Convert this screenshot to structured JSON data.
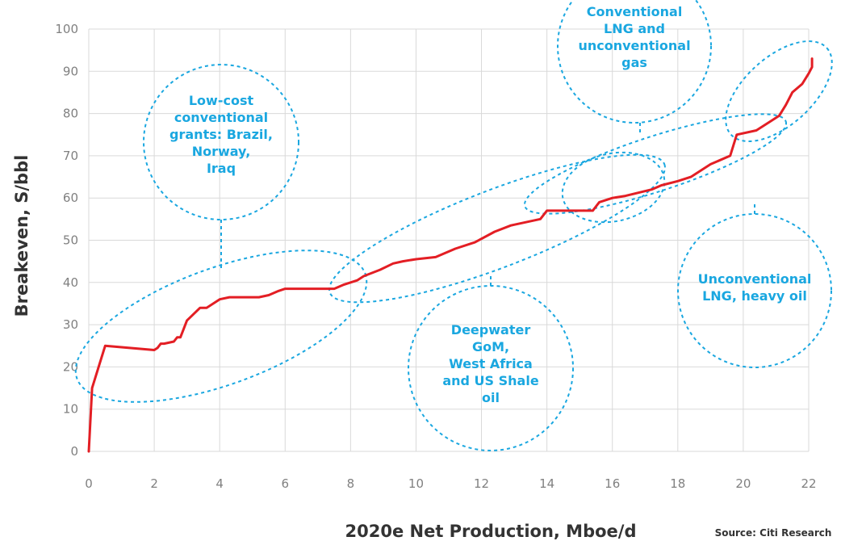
{
  "chart_data": {
    "type": "line",
    "title": "",
    "xlabel": "2020e Net Production, Mboe/d",
    "ylabel": "Breakeven, S/bbl",
    "source": "Source: Citi Research",
    "xlim": [
      0,
      22
    ],
    "ylim": [
      0,
      100
    ],
    "x_ticks": [
      "0",
      "2",
      "4",
      "6",
      "8",
      "10",
      "12",
      "14",
      "16",
      "18",
      "20",
      "22"
    ],
    "y_ticks": [
      "0",
      "10",
      "20",
      "30",
      "40",
      "50",
      "60",
      "70",
      "80",
      "90",
      "100"
    ],
    "grid": true,
    "line_color": "#e31e24",
    "annotation_color": "#1aa7e0",
    "series": [
      {
        "x": [
          0,
          0.1,
          0.5,
          2.0,
          2.1,
          2.2,
          2.3,
          2.6,
          2.7,
          2.8,
          2.9,
          3.0,
          3.4,
          3.6,
          3.8,
          4.0,
          4.3,
          5.2,
          5.5,
          5.8,
          6.0,
          7.5,
          7.8,
          8.0,
          8.2,
          8.4,
          8.9,
          9.3,
          9.6,
          10.0,
          10.6,
          11.2,
          11.8,
          12.4,
          12.9,
          13.8,
          14.0,
          14.6,
          15.4,
          15.6,
          16.0,
          16.4,
          17.2,
          17.5,
          18.0,
          18.4,
          19.0,
          19.6,
          19.8,
          20.4,
          20.8,
          21.1,
          21.3,
          21.5,
          21.8,
          22.0,
          22.1,
          22.1
        ],
        "y": [
          0,
          15,
          25,
          24,
          24.5,
          25.5,
          25.5,
          26,
          27,
          27,
          29,
          31,
          34,
          34,
          35,
          36,
          36.5,
          36.5,
          37,
          38,
          38.5,
          38.5,
          39.5,
          40,
          40.5,
          41.5,
          43,
          44.5,
          45,
          45.5,
          46,
          48,
          49.5,
          52,
          53.5,
          55,
          57,
          57,
          57,
          59,
          60,
          60.5,
          62,
          63,
          64,
          65,
          68,
          70,
          75,
          76,
          78,
          79.5,
          82,
          85,
          87,
          89.5,
          91,
          93
        ]
      }
    ],
    "annotations": [
      {
        "lines": [
          "Low-cost",
          "conventional",
          "grants: Brazil,",
          "Norway,",
          "Iraq"
        ]
      },
      {
        "lines": [
          "Deepwater",
          "GoM,",
          "West Africa",
          "and US Shale",
          "oil"
        ]
      },
      {
        "lines": [
          "Conventional",
          "LNG and",
          "unconventional",
          "gas"
        ]
      },
      {
        "lines": [
          "Unconventional",
          "LNG, heavy oil"
        ]
      }
    ]
  }
}
